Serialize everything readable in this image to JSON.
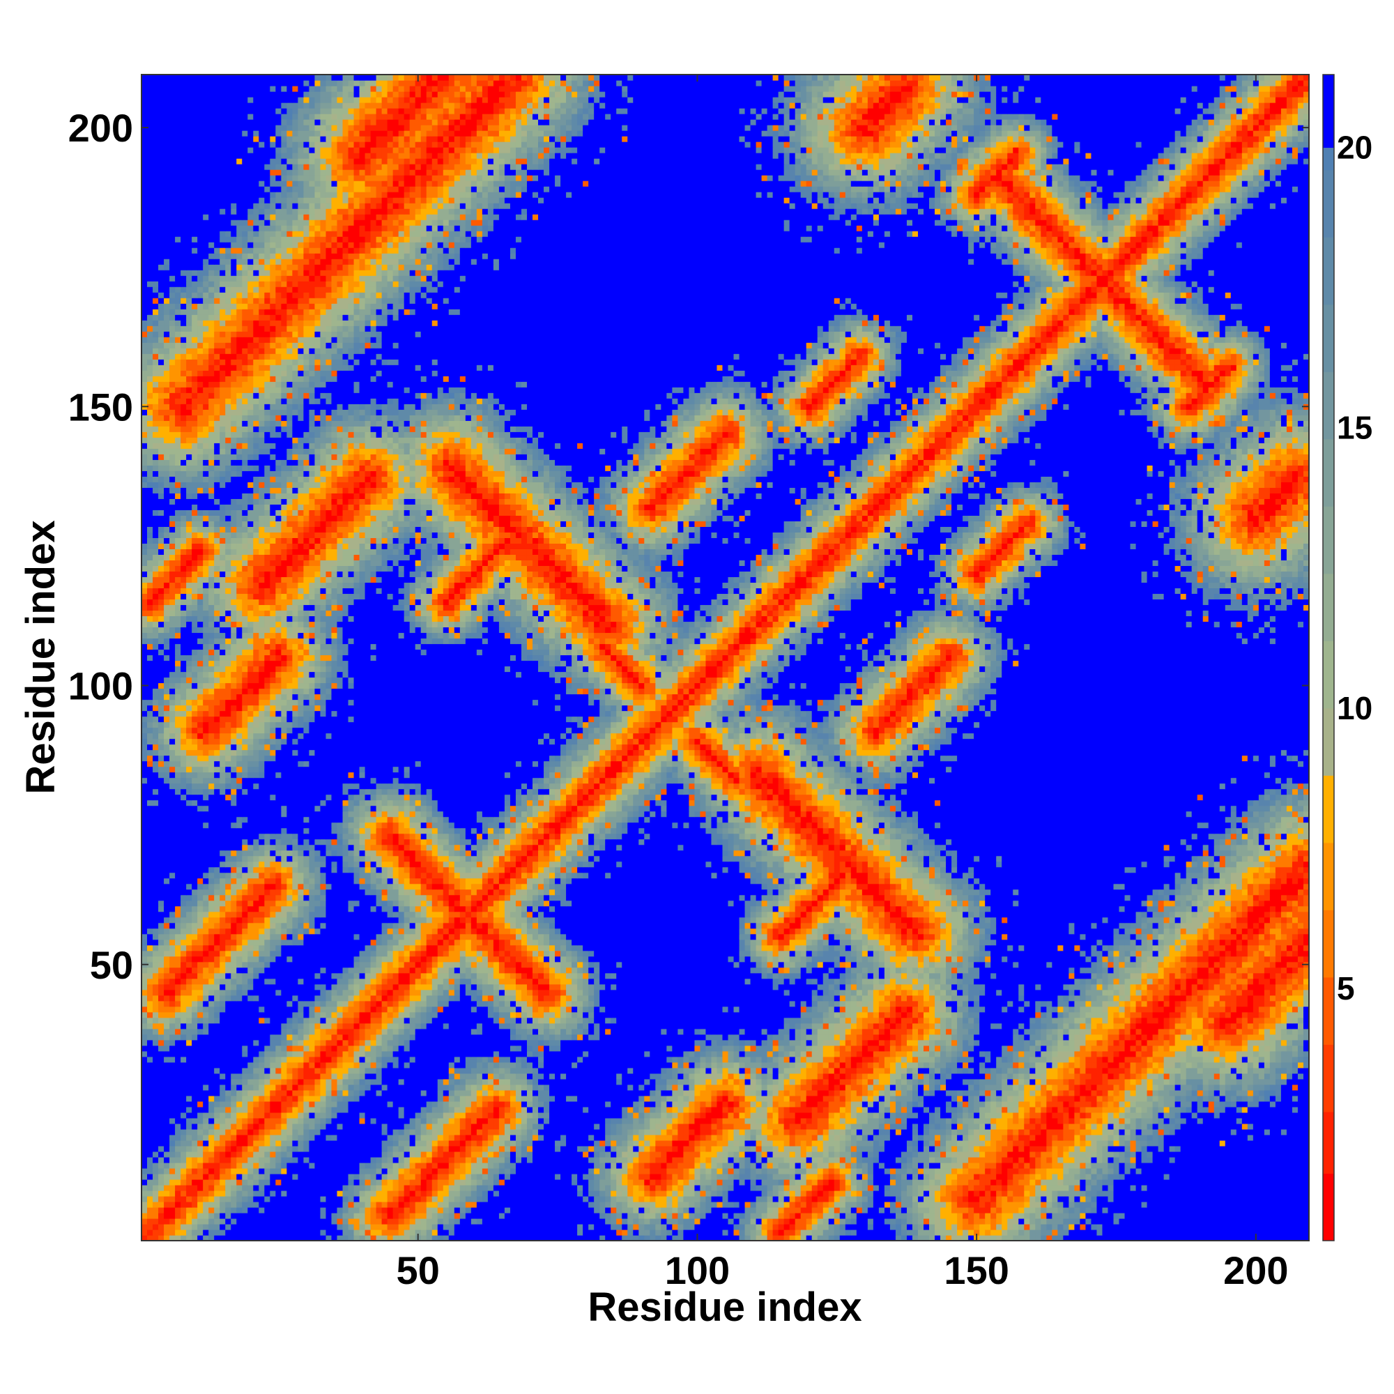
{
  "chart_data": {
    "type": "heatmap",
    "title": "",
    "xlabel": "Residue index",
    "ylabel": "Residue index",
    "n_residues": 209,
    "xlim": [
      0.5,
      209.5
    ],
    "ylim": [
      0.5,
      209.5
    ],
    "x_ticks": [
      50,
      100,
      150,
      200
    ],
    "y_ticks": [
      50,
      100,
      150,
      200
    ],
    "colorbar": {
      "min": 0.5,
      "max": 21.3,
      "ticks": [
        5,
        10,
        15,
        20
      ],
      "levels": [
        {
          "from": 0.5,
          "to": 1.7,
          "color": "#ff0000"
        },
        {
          "from": 1.7,
          "to": 2.8,
          "color": "#ff2200"
        },
        {
          "from": 2.8,
          "to": 4.0,
          "color": "#ff3d00"
        },
        {
          "from": 4.0,
          "to": 5.2,
          "color": "#ff5a00"
        },
        {
          "from": 5.2,
          "to": 6.4,
          "color": "#ff7a00"
        },
        {
          "from": 6.4,
          "to": 7.6,
          "color": "#ff9400"
        },
        {
          "from": 7.6,
          "to": 8.8,
          "color": "#ffb000"
        },
        {
          "from": 8.8,
          "to": 10.0,
          "color": "#a8b28a"
        },
        {
          "from": 10.0,
          "to": 11.2,
          "color": "#9fb58e"
        },
        {
          "from": 11.2,
          "to": 12.4,
          "color": "#94ad92"
        },
        {
          "from": 12.4,
          "to": 13.6,
          "color": "#88a596"
        },
        {
          "from": 13.6,
          "to": 14.8,
          "color": "#7e9e9a"
        },
        {
          "from": 14.8,
          "to": 16.0,
          "color": "#73969f"
        },
        {
          "from": 16.0,
          "to": 17.2,
          "color": "#6890a3"
        },
        {
          "from": 17.2,
          "to": 18.4,
          "color": "#5f8aa8"
        },
        {
          "from": 18.4,
          "to": 19.6,
          "color": "#5884ad"
        },
        {
          "from": 19.6,
          "to": 20.0,
          "color": "#5080b3"
        },
        {
          "from": 20.0,
          "to": 21.3,
          "color": "#0000ff"
        }
      ]
    },
    "contact_bands": [
      {
        "i": 1,
        "j": 1,
        "len": 209,
        "dir": "parallel",
        "width": 4.5
      },
      {
        "i": 5,
        "j": 45,
        "len": 20,
        "dir": "parallel",
        "width": 5
      },
      {
        "i": 45,
        "j": 5,
        "len": 20,
        "dir": "parallel",
        "width": 5
      },
      {
        "i": 55,
        "j": 115,
        "len": 12,
        "dir": "parallel",
        "width": 4
      },
      {
        "i": 115,
        "j": 55,
        "len": 12,
        "dir": "parallel",
        "width": 4
      },
      {
        "i": 115,
        "j": 2,
        "len": 10,
        "dir": "parallel",
        "width": 4
      },
      {
        "i": 2,
        "j": 115,
        "len": 10,
        "dir": "parallel",
        "width": 4
      },
      {
        "i": 60,
        "j": 58,
        "len": 14,
        "dir": "anti",
        "width": 5
      },
      {
        "i": 150,
        "j": 120,
        "len": 10,
        "dir": "parallel",
        "width": 4
      },
      {
        "i": 120,
        "j": 150,
        "len": 10,
        "dir": "parallel",
        "width": 4
      },
      {
        "i": 188,
        "j": 150,
        "len": 8,
        "dir": "parallel",
        "width": 4
      },
      {
        "i": 150,
        "j": 188,
        "len": 8,
        "dir": "parallel",
        "width": 4
      },
      {
        "i": 180,
        "j": 165,
        "len": 12,
        "dir": "anti",
        "width": 5
      },
      {
        "i": 165,
        "j": 180,
        "len": 12,
        "dir": "anti",
        "width": 5
      },
      {
        "i": 100,
        "j": 90,
        "len": 8,
        "dir": "anti",
        "width": 4
      },
      {
        "i": 92,
        "j": 132,
        "len": 14,
        "dir": "parallel",
        "width": 5
      },
      {
        "i": 132,
        "j": 92,
        "len": 14,
        "dir": "parallel",
        "width": 5
      },
      {
        "i": 12,
        "j": 92,
        "len": 14,
        "dir": "parallel",
        "width": 6
      },
      {
        "i": 92,
        "j": 12,
        "len": 14,
        "dir": "parallel",
        "width": 6
      },
      {
        "i": 22,
        "j": 118,
        "len": 20,
        "dir": "parallel",
        "width": 7
      },
      {
        "i": 118,
        "j": 22,
        "len": 20,
        "dir": "parallel",
        "width": 7
      },
      {
        "i": 40,
        "j": 195,
        "len": 20,
        "dir": "parallel",
        "width": 8
      },
      {
        "i": 195,
        "j": 40,
        "len": 20,
        "dir": "parallel",
        "width": 8
      },
      {
        "i": 8,
        "j": 150,
        "len": 60,
        "dir": "parallel",
        "width": 8
      },
      {
        "i": 150,
        "j": 8,
        "len": 60,
        "dir": "parallel",
        "width": 8
      },
      {
        "i": 130,
        "j": 200,
        "len": 8,
        "dir": "parallel",
        "width": 8
      },
      {
        "i": 200,
        "j": 130,
        "len": 8,
        "dir": "parallel",
        "width": 8
      },
      {
        "i": 70,
        "j": 125,
        "len": 15,
        "dir": "anti",
        "width": 7
      },
      {
        "i": 125,
        "j": 70,
        "len": 15,
        "dir": "anti",
        "width": 7
      }
    ]
  }
}
